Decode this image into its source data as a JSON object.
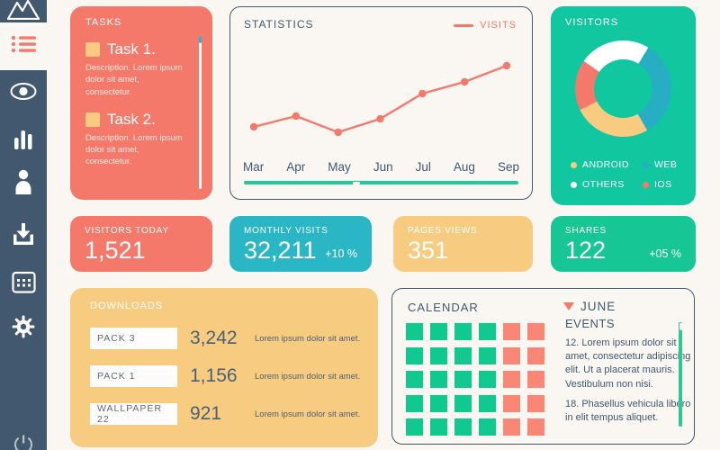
{
  "colors": {
    "page_bg": "#faf7f3",
    "sidebar_bg": "#41586e",
    "salmon": "#f4796b",
    "teal": "#2ab6c4",
    "yellow": "#f8cc80",
    "green": "#10c7a0",
    "text_dark": "#41586e"
  },
  "sidebar": {
    "items": [
      {
        "icon": "mountain-icon"
      },
      {
        "icon": "list-icon",
        "active": true
      },
      {
        "icon": "eye-icon"
      },
      {
        "icon": "bar-chart-icon"
      },
      {
        "icon": "user-icon"
      },
      {
        "icon": "download-icon"
      },
      {
        "icon": "calendar-icon"
      },
      {
        "icon": "gear-icon"
      },
      {
        "icon": "power-icon"
      }
    ]
  },
  "tasks": {
    "title": "TASKS",
    "items": [
      {
        "title": "Task 1.",
        "description": "Description. Lorem ipsum dolor sit amet, consectetur."
      },
      {
        "title": "Task 2.",
        "description": "Description. Lorem ipsum dolor sit amet, consectetur."
      }
    ]
  },
  "statistics": {
    "title": "STATISTICS",
    "legend_label": "VISITS"
  },
  "chart_data": [
    {
      "type": "line",
      "title": "STATISTICS",
      "x": [
        "Mar",
        "Apr",
        "May",
        "Jun",
        "Jul",
        "Aug",
        "Sep"
      ],
      "series": [
        {
          "name": "VISITS",
          "color": "#f4796b",
          "values": [
            30,
            42,
            24,
            39,
            67,
            80,
            98
          ]
        }
      ],
      "ylim": [
        0,
        110
      ],
      "grid": false,
      "legend_position": "top-right"
    },
    {
      "type": "pie",
      "title": "VISITORS",
      "donut": true,
      "start_angle_deg": -55,
      "slices": [
        {
          "label": "OTHERS",
          "color": "#ffffff",
          "pct": 24
        },
        {
          "label": "WEB",
          "color": "#27adc4",
          "pct": 33
        },
        {
          "label": "ANDROID",
          "color": "#f8cc80",
          "pct": 26
        },
        {
          "label": "IOS",
          "color": "#f4796b",
          "pct": 17
        }
      ]
    }
  ],
  "visitors": {
    "title": "VISITORS",
    "legend": [
      {
        "label": "ANDROID",
        "color": "#f8cc80"
      },
      {
        "label": "WEB",
        "color": "#27adc4"
      },
      {
        "label": "OTHERS",
        "color": "#ffffff"
      },
      {
        "label": "IOS",
        "color": "#f4796b"
      }
    ]
  },
  "stat_cards": [
    {
      "label": "VISITORS TODAY",
      "value": "1,521",
      "delta": "",
      "bg": "#f4796b"
    },
    {
      "label": "MONTHLY VISITS",
      "value": "32,211",
      "delta": "+10 %",
      "bg": "#2ab6c4"
    },
    {
      "label": "PAGES VIEWS",
      "value": "351",
      "delta": "",
      "bg": "#f8cc80"
    },
    {
      "label": "SHARES",
      "value": "122",
      "delta": "+05 %",
      "bg": "#16c795"
    }
  ],
  "downloads": {
    "title": "DOWNLOADS",
    "rows": [
      {
        "name": "PACK  3",
        "count": "3,242",
        "note": "Lorem ipsum dolor sit amet."
      },
      {
        "name": "PACK  1",
        "count": "1,156",
        "note": "Lorem ipsum dolor sit amet."
      },
      {
        "name": "WALLPAPER 22",
        "count": "921",
        "note": "Lorem ipsum dolor sit amet."
      }
    ]
  },
  "calendar": {
    "title": "CALENDAR",
    "month": "JUNE",
    "events_title": "EVENTS",
    "events": [
      "12. Lorem ipsum dolor sit amet, consectetur adipiscing elit. Ut a placerat mauris. Vestibulum non nisi.",
      "18. Phasellus vehicula libero in elit tempus aliquet."
    ],
    "grid": {
      "cols": 6,
      "rows": 5,
      "green_cols": 4,
      "green": "#0fc98e",
      "red": "#fa8775"
    }
  }
}
